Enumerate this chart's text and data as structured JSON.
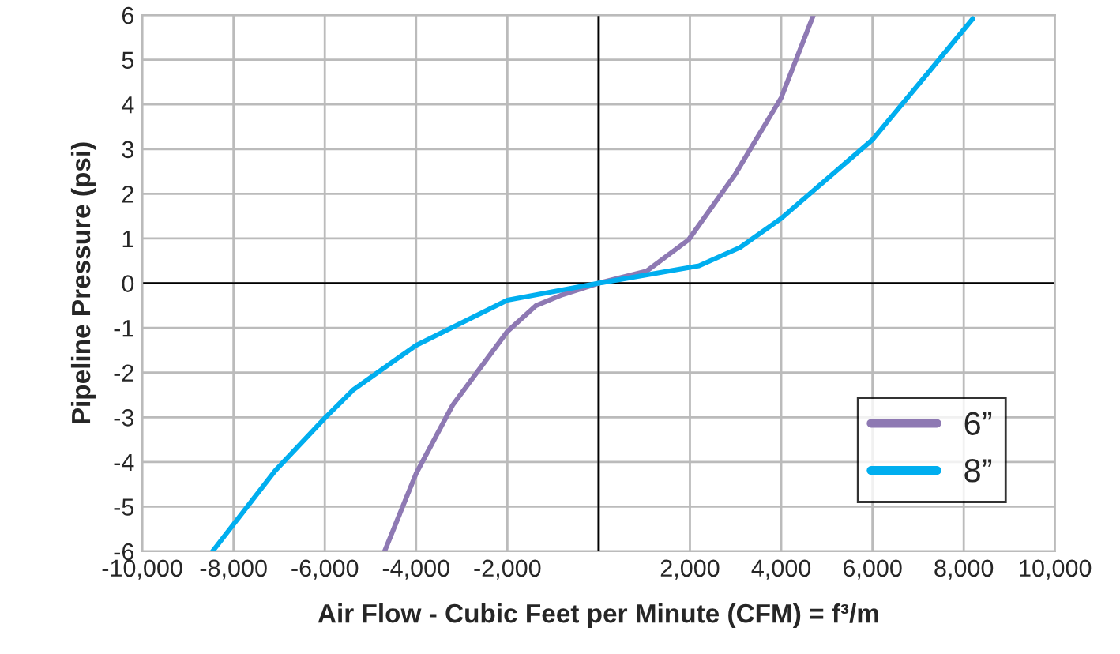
{
  "chart_data": {
    "type": "line",
    "xlabel": "Air Flow - Cubic Feet per Minute (CFM) = f³/m",
    "ylabel": "Pipeline Pressure (psi)",
    "series": [
      {
        "name": "6”",
        "color": "#8e79b3",
        "x": [
          -4690,
          -4000,
          -3200,
          -2000,
          -1370,
          -800,
          0,
          1050,
          1970,
          3000,
          4000,
          4700
        ],
        "values": [
          -6,
          -4.26,
          -2.73,
          -1.08,
          -0.5,
          -0.26,
          0,
          0.27,
          0.97,
          2.45,
          4.15,
          5.98
        ]
      },
      {
        "name": "8”",
        "color": "#00aeef",
        "x": [
          -8460,
          -7090,
          -6000,
          -5370,
          -4000,
          -2000,
          0,
          2200,
          3100,
          4000,
          6000,
          7100,
          8200
        ],
        "values": [
          -6,
          -4.2,
          -3.02,
          -2.38,
          -1.39,
          -0.38,
          0,
          0.39,
          0.8,
          1.45,
          3.21,
          4.56,
          5.92
        ]
      }
    ],
    "xlim": [
      -10000,
      10000
    ],
    "ylim": [
      -6,
      6
    ],
    "xticks": [
      {
        "value": -10000,
        "label": "-10,000"
      },
      {
        "value": -8000,
        "label": "-8,000"
      },
      {
        "value": -6000,
        "label": "-6,000"
      },
      {
        "value": -4000,
        "label": "-4,000"
      },
      {
        "value": -2000,
        "label": "-2,000"
      },
      {
        "value": 0,
        "label": null
      },
      {
        "value": 2000,
        "label": "2,000"
      },
      {
        "value": 4000,
        "label": "4,000"
      },
      {
        "value": 6000,
        "label": "6,000"
      },
      {
        "value": 8000,
        "label": "8,000"
      },
      {
        "value": 10000,
        "label": "10,000"
      }
    ],
    "yticks": [
      -6,
      -5,
      -4,
      -3,
      -2,
      -1,
      0,
      1,
      2,
      3,
      4,
      5,
      6
    ],
    "grid": true,
    "legend": "bottom right",
    "line_style": "solid"
  }
}
